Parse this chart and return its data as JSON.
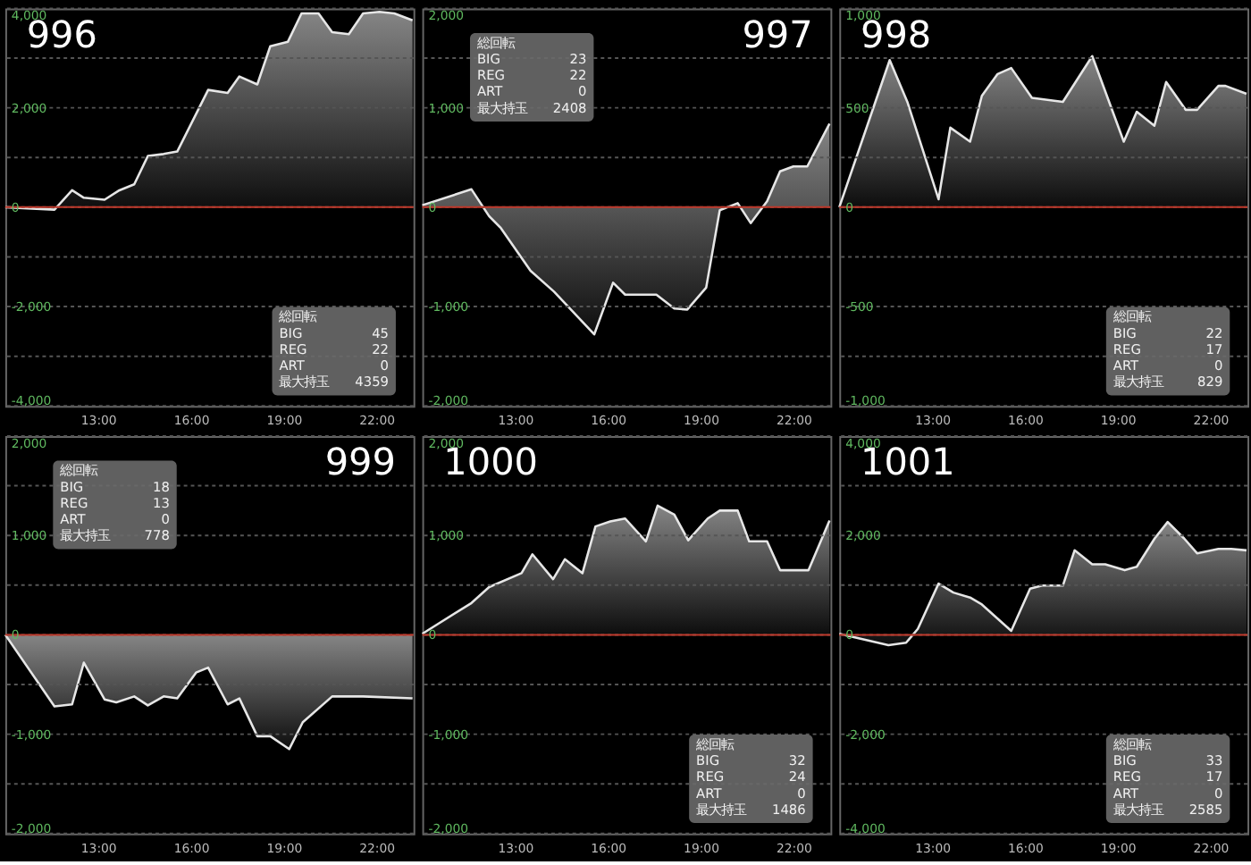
{
  "chart_data": [
    {
      "type": "area",
      "title": "996",
      "x": [
        10.0,
        11.59,
        12.16,
        12.54,
        13.21,
        13.69,
        14.17,
        14.61,
        15.12,
        15.56,
        16.56,
        17.19,
        17.57,
        18.15,
        18.57,
        19.14,
        19.58,
        20.13,
        20.57,
        21.11,
        21.57,
        22.1,
        22.58,
        23.17
      ],
      "series": [
        {
          "color": "#e6e6e6",
          "values": [
            0,
            -50,
            340,
            190,
            150,
            340,
            460,
            1030,
            1070,
            1120,
            2360,
            2300,
            2630,
            2470,
            3240,
            3330,
            3900,
            3900,
            3520,
            3480,
            3900,
            3930,
            3900,
            3760
          ]
        }
      ],
      "xlim": [
        10,
        23.2
      ],
      "xticks": [
        {
          "value": 13,
          "label": "13:00"
        },
        {
          "value": 16,
          "label": "16:00"
        },
        {
          "value": 19,
          "label": "19:00"
        },
        {
          "value": 22,
          "label": "22:00"
        }
      ],
      "ylim": [
        -4000,
        4000
      ],
      "yticks": [
        {
          "value": -4000,
          "label": "-4,000"
        },
        {
          "value": -3000,
          "label": null
        },
        {
          "value": -2000,
          "label": "-2,000"
        },
        {
          "value": -1000,
          "label": null
        },
        0,
        {
          "value": 1000,
          "label": null
        },
        {
          "value": 2000,
          "label": "2,000"
        },
        {
          "value": 3000,
          "label": null
        },
        {
          "value": 4000,
          "label": "4,000"
        }
      ],
      "grid": "y",
      "ref_lines": [
        {
          "axis": "y",
          "value": 0,
          "color": "#c0392b"
        }
      ],
      "annotations": [
        "総回転",
        "BIG",
        "45",
        "REG",
        "22",
        "ART",
        "0",
        "最大持玉",
        "4359"
      ]
    },
    {
      "type": "area",
      "title": "997",
      "x": [
        10.0,
        11.59,
        12.16,
        12.54,
        13.5,
        14.26,
        15.56,
        16.17,
        16.56,
        17.57,
        18.15,
        18.57,
        19.18,
        19.62,
        20.2,
        20.62,
        21.15,
        21.57,
        22.0,
        22.45,
        23.17
      ],
      "series": [
        {
          "color": "#e6e6e6",
          "values": [
            20,
            180,
            -90,
            -210,
            -640,
            -850,
            -1280,
            -760,
            -880,
            -880,
            -1020,
            -1030,
            -810,
            -30,
            40,
            -160,
            60,
            360,
            410,
            410,
            840
          ]
        }
      ],
      "xlim": [
        10,
        23.2
      ],
      "xticks": [
        {
          "value": 13,
          "label": "13:00"
        },
        {
          "value": 16,
          "label": "16:00"
        },
        {
          "value": 19,
          "label": "19:00"
        },
        {
          "value": 22,
          "label": "22:00"
        }
      ],
      "ylim": [
        -2000,
        2000
      ],
      "yticks": [
        {
          "value": -2000,
          "label": "-2,000"
        },
        {
          "value": -1500,
          "label": null
        },
        {
          "value": -1000,
          "label": "-1,000"
        },
        {
          "value": -500,
          "label": null
        },
        0,
        {
          "value": 500,
          "label": null
        },
        {
          "value": 1000,
          "label": "1,000"
        },
        {
          "value": 1500,
          "label": null
        },
        {
          "value": 2000,
          "label": "2,000"
        }
      ],
      "grid": "y",
      "ref_lines": [
        {
          "axis": "y",
          "value": 0,
          "color": "#c0392b"
        }
      ],
      "annotations": [
        "総回転",
        "BIG",
        "23",
        "REG",
        "22",
        "ART",
        "0",
        "最大持玉",
        "2408"
      ]
    },
    {
      "type": "area",
      "title": "998",
      "x": [
        10.0,
        11.63,
        12.2,
        13.21,
        13.59,
        14.23,
        14.61,
        15.12,
        15.56,
        16.23,
        17.23,
        18.18,
        19.2,
        19.62,
        20.19,
        20.57,
        21.2,
        21.57,
        22.26,
        22.49,
        23.17
      ],
      "series": [
        {
          "color": "#e6e6e6",
          "values": [
            0,
            740,
            530,
            40,
            400,
            330,
            560,
            670,
            700,
            550,
            530,
            760,
            330,
            480,
            410,
            630,
            490,
            490,
            610,
            610,
            570
          ]
        }
      ],
      "xlim": [
        10,
        23.2
      ],
      "xticks": [
        {
          "value": 13,
          "label": "13:00"
        },
        {
          "value": 16,
          "label": "16:00"
        },
        {
          "value": 19,
          "label": "19:00"
        },
        {
          "value": 22,
          "label": "22:00"
        }
      ],
      "ylim": [
        -1000,
        1000
      ],
      "yticks": [
        {
          "value": -1000,
          "label": "-1,000"
        },
        {
          "value": -750,
          "label": null
        },
        -500,
        {
          "value": -250,
          "label": null
        },
        0,
        {
          "value": 250,
          "label": null
        },
        500,
        {
          "value": 750,
          "label": null
        },
        {
          "value": 1000,
          "label": "1,000"
        }
      ],
      "grid": "y",
      "ref_lines": [
        {
          "axis": "y",
          "value": 0,
          "color": "#c0392b"
        }
      ],
      "annotations": [
        "総回転",
        "BIG",
        "22",
        "REG",
        "17",
        "ART",
        "0",
        "最大持玉",
        "829"
      ]
    },
    {
      "type": "area",
      "title": "999",
      "x": [
        10.0,
        11.59,
        12.16,
        12.54,
        13.21,
        13.59,
        14.17,
        14.61,
        15.12,
        15.56,
        16.17,
        16.56,
        17.19,
        17.57,
        18.15,
        18.57,
        19.18,
        19.62,
        20.57,
        21.57,
        23.17
      ],
      "series": [
        {
          "color": "#e6e6e6",
          "values": [
            0,
            -720,
            -700,
            -280,
            -650,
            -680,
            -620,
            -710,
            -620,
            -640,
            -380,
            -330,
            -700,
            -640,
            -1020,
            -1020,
            -1150,
            -880,
            -620,
            -620,
            -640
          ]
        }
      ],
      "xlim": [
        10,
        23.2
      ],
      "xticks": [
        {
          "value": 13,
          "label": "13:00"
        },
        {
          "value": 16,
          "label": "16:00"
        },
        {
          "value": 19,
          "label": "19:00"
        },
        {
          "value": 22,
          "label": "22:00"
        }
      ],
      "ylim": [
        -2000,
        2000
      ],
      "yticks": [
        {
          "value": -2000,
          "label": "-2,000"
        },
        {
          "value": -1500,
          "label": null
        },
        {
          "value": -1000,
          "label": "-1,000"
        },
        {
          "value": -500,
          "label": null
        },
        0,
        {
          "value": 500,
          "label": null
        },
        {
          "value": 1000,
          "label": "1,000"
        },
        {
          "value": 1500,
          "label": null
        },
        {
          "value": 2000,
          "label": "2,000"
        }
      ],
      "grid": "y",
      "ref_lines": [
        {
          "axis": "y",
          "value": 0,
          "color": "#c0392b"
        }
      ],
      "annotations": [
        "総回転",
        "BIG",
        "18",
        "REG",
        "13",
        "ART",
        "0",
        "最大持玉",
        "778"
      ]
    },
    {
      "type": "area",
      "title": "1000",
      "x": [
        10.0,
        11.59,
        12.16,
        13.21,
        13.56,
        14.23,
        14.61,
        15.18,
        15.6,
        16.08,
        16.56,
        17.23,
        17.61,
        18.15,
        18.6,
        19.23,
        19.62,
        20.2,
        20.57,
        21.15,
        21.57,
        22.49,
        23.17
      ],
      "series": [
        {
          "color": "#e6e6e6",
          "values": [
            10,
            320,
            480,
            620,
            810,
            560,
            760,
            620,
            1090,
            1140,
            1170,
            940,
            1300,
            1210,
            950,
            1170,
            1250,
            1250,
            940,
            940,
            650,
            650,
            1150
          ]
        }
      ],
      "xlim": [
        10,
        23.2
      ],
      "xticks": [
        {
          "value": 13,
          "label": "13:00"
        },
        {
          "value": 16,
          "label": "16:00"
        },
        {
          "value": 19,
          "label": "19:00"
        },
        {
          "value": 22,
          "label": "22:00"
        }
      ],
      "ylim": [
        -2000,
        2000
      ],
      "yticks": [
        {
          "value": -2000,
          "label": "-2,000"
        },
        {
          "value": -1500,
          "label": null
        },
        {
          "value": -1000,
          "label": "-1,000"
        },
        {
          "value": -500,
          "label": null
        },
        0,
        {
          "value": 500,
          "label": null
        },
        {
          "value": 1000,
          "label": "1,000"
        },
        {
          "value": 1500,
          "label": null
        },
        {
          "value": 2000,
          "label": "2,000"
        }
      ],
      "grid": "y",
      "ref_lines": [
        {
          "axis": "y",
          "value": 0,
          "color": "#c0392b"
        }
      ],
      "annotations": [
        "総回転",
        "BIG",
        "32",
        "REG",
        "24",
        "ART",
        "0",
        "最大持玉",
        "1486"
      ]
    },
    {
      "type": "area",
      "title": "1001",
      "x": [
        10.0,
        11.59,
        12.16,
        12.54,
        13.21,
        13.69,
        14.23,
        14.61,
        15.56,
        16.17,
        16.56,
        17.23,
        17.61,
        18.18,
        18.6,
        19.23,
        19.62,
        20.2,
        20.62,
        21.15,
        21.57,
        22.26,
        22.68,
        23.17
      ],
      "series": [
        {
          "color": "#e6e6e6",
          "values": [
            20,
            -210,
            -160,
            120,
            1030,
            850,
            750,
            610,
            80,
            930,
            990,
            990,
            1700,
            1420,
            1420,
            1300,
            1370,
            1940,
            2270,
            1940,
            1640,
            1730,
            1730,
            1700
          ]
        }
      ],
      "xlim": [
        10,
        23.2
      ],
      "xticks": [
        {
          "value": 13,
          "label": "13:00"
        },
        {
          "value": 16,
          "label": "16:00"
        },
        {
          "value": 19,
          "label": "19:00"
        },
        {
          "value": 22,
          "label": "22:00"
        }
      ],
      "ylim": [
        -4000,
        4000
      ],
      "yticks": [
        {
          "value": -4000,
          "label": "-4,000"
        },
        {
          "value": -3000,
          "label": null
        },
        {
          "value": -2000,
          "label": "-2,000"
        },
        {
          "value": -1000,
          "label": null
        },
        0,
        {
          "value": 1000,
          "label": null
        },
        {
          "value": 2000,
          "label": "2,000"
        },
        {
          "value": 3000,
          "label": null
        },
        {
          "value": 4000,
          "label": "4,000"
        }
      ],
      "grid": "y",
      "ref_lines": [
        {
          "axis": "y",
          "value": 0,
          "color": "#c0392b"
        }
      ],
      "annotations": [
        "総回転",
        "BIG",
        "33",
        "REG",
        "17",
        "ART",
        "0",
        "最大持玉",
        "2585"
      ]
    }
  ]
}
